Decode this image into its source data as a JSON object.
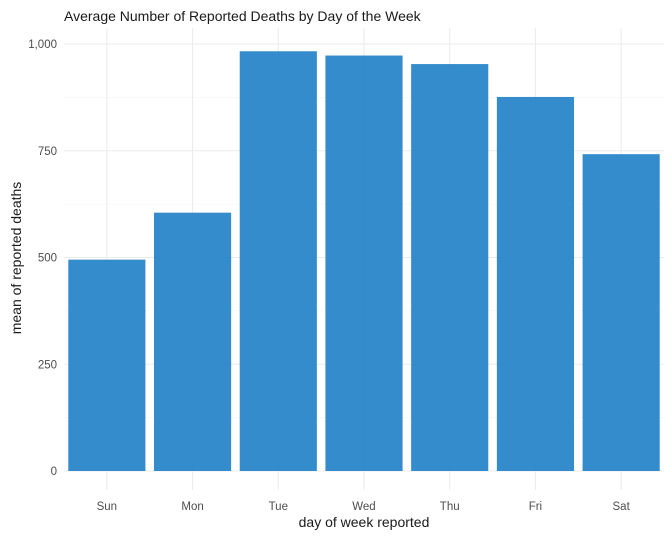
{
  "chart_data": {
    "type": "bar",
    "title": "Average Number of Reported Deaths by Day of the Week",
    "xlabel": "day of week reported",
    "ylabel": "mean of reported deaths",
    "categories": [
      "Sun",
      "Mon",
      "Tue",
      "Wed",
      "Thu",
      "Fri",
      "Sat"
    ],
    "values": [
      495,
      605,
      983,
      973,
      953,
      876,
      742
    ],
    "ylim": [
      0,
      1000
    ],
    "yticks": [
      0,
      250,
      500,
      750,
      1000
    ],
    "ytick_labels": [
      "0",
      "250",
      "500",
      "750",
      "1,000"
    ],
    "bar_color": "#1f7fc7",
    "grid": true,
    "legend": "none"
  }
}
